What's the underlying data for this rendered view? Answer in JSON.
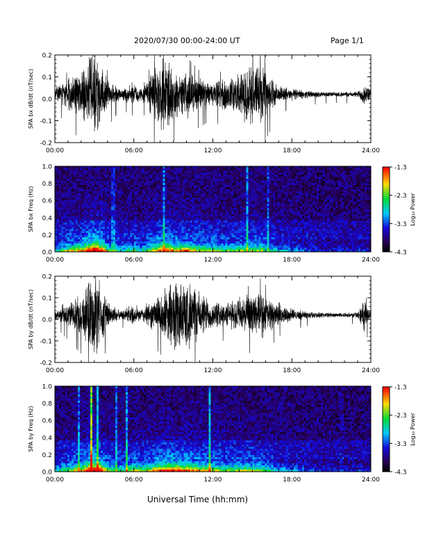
{
  "header": {
    "title": "2020/07/30  00:00-24:00 UT",
    "page": "Page 1/1"
  },
  "xaxis": {
    "label": "Universal Time (hh:mm)",
    "range_hours": [
      0,
      24
    ],
    "ticks": [
      "00:00",
      "06:00",
      "12:00",
      "18:00",
      "24:00"
    ]
  },
  "colorbar": {
    "label": "Log₁₀ Power",
    "ticks": [
      "-1.3",
      "-2.3",
      "-3.3",
      "-4.3"
    ],
    "range": [
      -4.3,
      -1.3
    ]
  },
  "chart_data": [
    {
      "type": "line",
      "ylabel": "SPA bx dB/dt (nT/sec)",
      "ylim": [
        -0.2,
        0.2
      ],
      "yticks": [
        "0.2",
        "0.1",
        "0.0",
        "-0.1",
        "-0.2"
      ],
      "envelope_x_hours": [
        0,
        1,
        2,
        2.8,
        3.2,
        4,
        5,
        6,
        6.5,
        7,
        8,
        8.6,
        9,
        10,
        11,
        12,
        13,
        14,
        15,
        15.6,
        16,
        17,
        18,
        19,
        20,
        21,
        22,
        23,
        23.5,
        24
      ],
      "envelope_amplitude": [
        0.03,
        0.08,
        0.12,
        0.2,
        0.2,
        0.08,
        0.03,
        0.05,
        0.03,
        0.06,
        0.2,
        0.2,
        0.12,
        0.12,
        0.08,
        0.06,
        0.09,
        0.12,
        0.16,
        0.2,
        0.12,
        0.04,
        0.03,
        0.02,
        0.015,
        0.012,
        0.012,
        0.015,
        0.06,
        0.02
      ]
    },
    {
      "type": "heatmap",
      "ylabel": "SPA bx Freq (Hz)",
      "ylim": [
        0.0,
        1.0
      ],
      "yticks": [
        "1.0",
        "0.8",
        "0.6",
        "0.4",
        "0.2",
        "0.0"
      ],
      "zlim": [
        -4.3,
        -1.3
      ],
      "activity_x_hours": [
        0,
        1,
        2,
        2.8,
        3.2,
        4,
        5,
        6,
        6.5,
        7,
        8,
        8.6,
        9,
        10,
        11,
        12,
        13,
        14,
        15,
        15.6,
        16,
        17,
        18,
        19,
        20,
        21,
        22,
        23,
        23.5,
        24
      ],
      "activity_level": [
        0.3,
        0.55,
        0.65,
        1.0,
        1.0,
        0.5,
        0.35,
        0.45,
        0.35,
        0.45,
        0.75,
        0.8,
        0.65,
        0.7,
        0.55,
        0.5,
        0.45,
        0.5,
        0.5,
        0.55,
        0.45,
        0.3,
        0.25,
        0.2,
        0.15,
        0.12,
        0.12,
        0.12,
        0.15,
        0.1
      ]
    },
    {
      "type": "line",
      "ylabel": "SPA by dB/dt (nT/sec)",
      "ylim": [
        -0.2,
        0.2
      ],
      "yticks": [
        "0.2",
        "0.1",
        "0.0",
        "-0.1",
        "-0.2"
      ],
      "envelope_x_hours": [
        0,
        1,
        2,
        2.8,
        3.2,
        4,
        5,
        6,
        6.5,
        7,
        8,
        8.6,
        9,
        10,
        11,
        12,
        13,
        14,
        15,
        15.6,
        16,
        17,
        18,
        19,
        20,
        21,
        22,
        23,
        23.5,
        24
      ],
      "envelope_amplitude": [
        0.02,
        0.06,
        0.1,
        0.2,
        0.2,
        0.07,
        0.02,
        0.05,
        0.03,
        0.06,
        0.1,
        0.15,
        0.2,
        0.18,
        0.12,
        0.07,
        0.06,
        0.09,
        0.1,
        0.12,
        0.1,
        0.05,
        0.03,
        0.02,
        0.015,
        0.012,
        0.012,
        0.015,
        0.08,
        0.02
      ]
    },
    {
      "type": "heatmap",
      "ylabel": "SPA by Freq (Hz)",
      "ylim": [
        0.0,
        1.0
      ],
      "yticks": [
        "1.0",
        "0.8",
        "0.6",
        "0.4",
        "0.2",
        "0.0"
      ],
      "zlim": [
        -4.3,
        -1.3
      ],
      "activity_x_hours": [
        0,
        1,
        2,
        2.8,
        3.2,
        4,
        5,
        6,
        6.5,
        7,
        8,
        8.6,
        9,
        10,
        11,
        12,
        13,
        14,
        15,
        15.6,
        16,
        17,
        18,
        19,
        20,
        21,
        22,
        23,
        23.5,
        24
      ],
      "activity_level": [
        0.3,
        0.5,
        0.65,
        1.0,
        1.0,
        0.5,
        0.4,
        0.55,
        0.5,
        0.55,
        0.75,
        0.85,
        0.8,
        0.75,
        0.65,
        0.55,
        0.5,
        0.55,
        0.5,
        0.5,
        0.45,
        0.3,
        0.25,
        0.2,
        0.15,
        0.12,
        0.12,
        0.12,
        0.15,
        0.1
      ]
    }
  ]
}
